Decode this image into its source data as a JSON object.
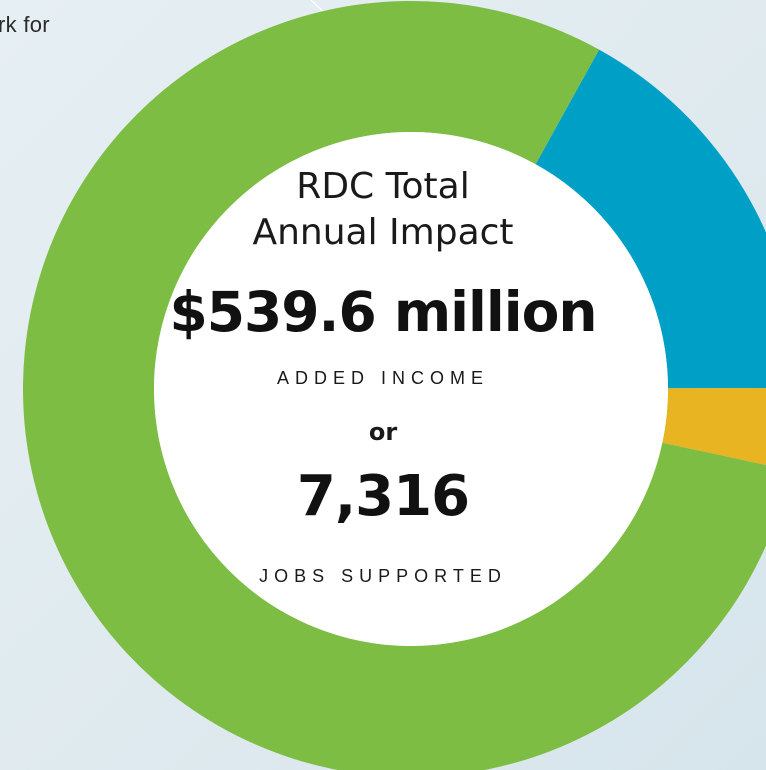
{
  "top_text_fragment": "rk for",
  "center": {
    "title_line1": "RDC Total",
    "title_line2": "Annual Impact",
    "income_value": "$539.6 million",
    "income_label": "ADDED INCOME",
    "connector": "or",
    "jobs_value": "7,316",
    "jobs_label": "JOBS SUPPORTED"
  },
  "chart_data": {
    "type": "pie",
    "style": "donut",
    "title": "RDC Total Annual Impact",
    "slices": [
      {
        "value": 16.9,
        "color": "#00a0c6"
      },
      {
        "value": 3.4,
        "color": "#e9b422"
      },
      {
        "value": 79.7,
        "color": "#7dbd43"
      }
    ],
    "start_angle_deg": 29
  }
}
